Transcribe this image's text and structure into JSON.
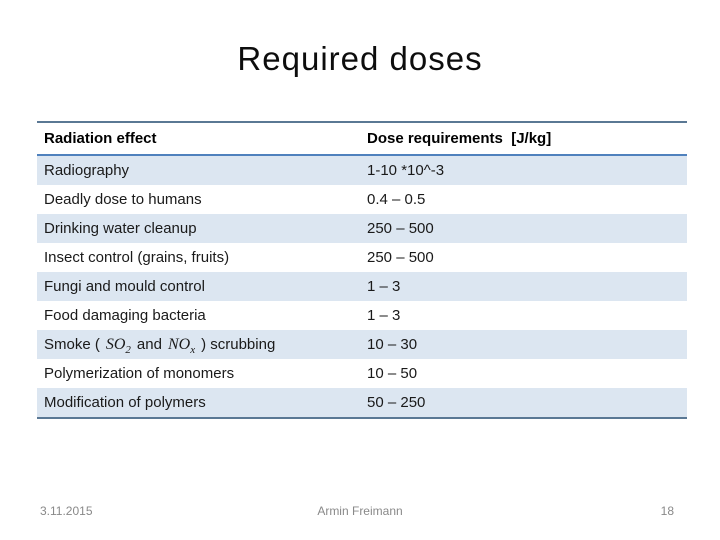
{
  "slide": {
    "title": "Required doses",
    "footer": {
      "date": "3.11.2015",
      "author": "Armin Freimann",
      "page_number": "18"
    }
  },
  "colors": {
    "background": "#ffffff",
    "band_fill": "#dce6f1",
    "outer_border": "#5a7894",
    "header_underline": "#4f81bd",
    "body_text": "#1a1a1a",
    "footer_text": "#898989"
  },
  "table": {
    "headers": [
      "Radiation effect",
      "Dose requirements  [J/kg]"
    ],
    "rows": [
      {
        "effect": [
          {
            "text": "Radiography"
          }
        ],
        "dose": "1-10 *10^-3",
        "shaded": true
      },
      {
        "effect": [
          {
            "text": "Deadly dose to humans"
          }
        ],
        "dose": "0.4 – 0.5",
        "shaded": false
      },
      {
        "effect": [
          {
            "text": "Drinking water cleanup"
          }
        ],
        "dose": "250 – 500",
        "shaded": true
      },
      {
        "effect": [
          {
            "text": "Insect control (grains, fruits)"
          }
        ],
        "dose": "250 – 500",
        "shaded": false
      },
      {
        "effect": [
          {
            "text": "Fungi and mould control"
          }
        ],
        "dose": "1 – 3",
        "shaded": true
      },
      {
        "effect": [
          {
            "text": "Food damaging bacteria"
          }
        ],
        "dose": "1 – 3",
        "shaded": false
      },
      {
        "effect": [
          {
            "text": "Smoke ("
          },
          {
            "math": "SO",
            "sub": "2"
          },
          {
            "text": "and"
          },
          {
            "math": "NO",
            "sub": "x"
          },
          {
            "text": ") scrubbing"
          }
        ],
        "dose": "10 – 30",
        "shaded": true
      },
      {
        "effect": [
          {
            "text": "Polymerization of monomers"
          }
        ],
        "dose": "10 – 50",
        "shaded": false
      },
      {
        "effect": [
          {
            "text": "Modification of polymers"
          }
        ],
        "dose": "50 – 250",
        "shaded": true
      }
    ]
  }
}
